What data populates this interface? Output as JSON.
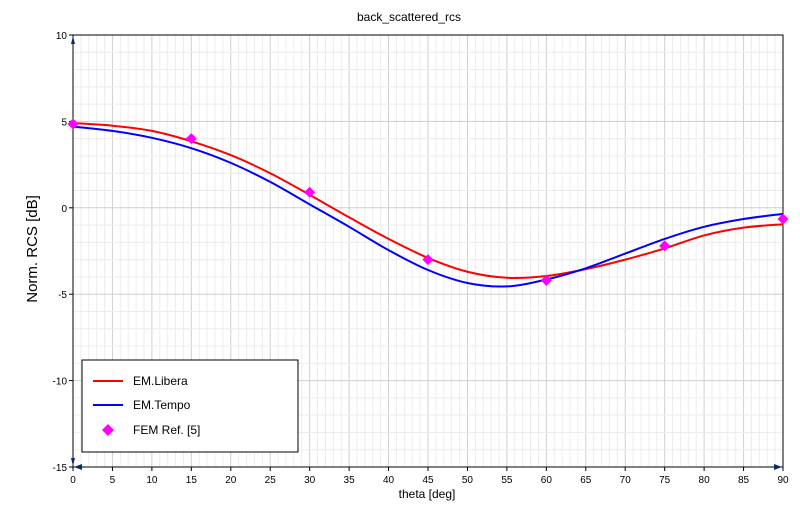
{
  "chart_data": {
    "type": "line",
    "title": "back_scattered_rcs",
    "xlabel": "theta [deg]",
    "ylabel": "Norm. RCS [dB]",
    "xlim": [
      0,
      90
    ],
    "ylim": [
      -15,
      10
    ],
    "x_ticks": [
      "0",
      "5",
      "10",
      "15",
      "20",
      "25",
      "30",
      "35",
      "40",
      "45",
      "50",
      "55",
      "60",
      "65",
      "70",
      "75",
      "80",
      "85",
      "90"
    ],
    "y_ticks": [
      "10",
      "5",
      "0",
      "-5",
      "-10",
      "-15"
    ],
    "grid": true,
    "legend_position": "bottom-left",
    "series": [
      {
        "name": "EM.Libera",
        "color": "#ff0000",
        "style": "line",
        "x": [
          0,
          5,
          10,
          15,
          20,
          25,
          30,
          35,
          40,
          45,
          50,
          55,
          60,
          65,
          70,
          75,
          80,
          85,
          90
        ],
        "y": [
          4.9,
          4.75,
          4.45,
          3.85,
          3.05,
          2.0,
          0.75,
          -0.55,
          -1.8,
          -2.9,
          -3.7,
          -4.05,
          -3.95,
          -3.55,
          -3.0,
          -2.35,
          -1.6,
          -1.15,
          -0.95
        ]
      },
      {
        "name": "EM.Tempo",
        "color": "#0000ff",
        "style": "line",
        "x": [
          0,
          5,
          10,
          15,
          20,
          25,
          30,
          35,
          40,
          45,
          50,
          55,
          60,
          65,
          70,
          75,
          80,
          85,
          90
        ],
        "y": [
          4.7,
          4.45,
          4.05,
          3.45,
          2.6,
          1.5,
          0.2,
          -1.1,
          -2.45,
          -3.6,
          -4.35,
          -4.55,
          -4.15,
          -3.5,
          -2.65,
          -1.8,
          -1.1,
          -0.65,
          -0.35
        ]
      },
      {
        "name": "FEM Ref. [5]",
        "color": "#ff00ff",
        "style": "marker",
        "x": [
          0,
          15,
          30,
          45,
          60,
          75,
          90
        ],
        "y": [
          4.85,
          4.0,
          0.9,
          -3.0,
          -4.2,
          -2.2,
          -0.65
        ]
      }
    ]
  }
}
